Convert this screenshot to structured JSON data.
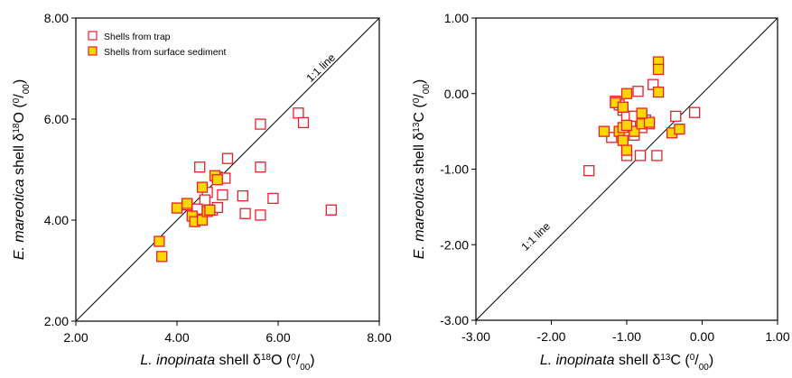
{
  "chart_data": [
    {
      "type": "scatter",
      "id": "oxygen",
      "xlabel": {
        "prefix": "L. inopinata",
        "main": " shell δ",
        "sup": "18",
        "tail": "O (",
        "unit_sup": "0",
        "unit_sep": "/",
        "unit_sub": "00",
        "close": ")"
      },
      "ylabel": {
        "prefix": "E. mareotica",
        "main": " shell δ",
        "sup": "18",
        "tail": "O (",
        "unit_sup": "0",
        "unit_sep": "/",
        "unit_sub": "00",
        "close": ")"
      },
      "xlim": [
        2,
        8
      ],
      "ylim": [
        2,
        8
      ],
      "xticks": [
        "2.00",
        "4.00",
        "6.00",
        "8.00"
      ],
      "yticks": [
        "2.00",
        "4.00",
        "6.00",
        "8.00"
      ],
      "one_to_one_label": "1:1 line",
      "legend": {
        "position": "top-left",
        "entries": [
          "Shells from trap",
          "Shells from surface sediment"
        ]
      },
      "series": [
        {
          "name": "Shells from trap",
          "color": "#e8202a",
          "fill": "#ffffff",
          "points": [
            [
              4.45,
              5.05
            ],
            [
              5.0,
              5.22
            ],
            [
              5.65,
              5.9
            ],
            [
              6.4,
              6.12
            ],
            [
              6.5,
              5.93
            ],
            [
              5.65,
              5.05
            ],
            [
              4.8,
              4.85
            ],
            [
              4.95,
              4.83
            ],
            [
              4.6,
              4.55
            ],
            [
              4.9,
              4.5
            ],
            [
              5.3,
              4.48
            ],
            [
              4.55,
              4.4
            ],
            [
              4.4,
              4.22
            ],
            [
              4.7,
              4.2
            ],
            [
              4.8,
              4.25
            ],
            [
              5.9,
              4.43
            ],
            [
              5.35,
              4.13
            ],
            [
              5.65,
              4.1
            ],
            [
              7.05,
              4.2
            ],
            [
              4.2,
              4.3
            ],
            [
              4.35,
              4.0
            ]
          ]
        },
        {
          "name": "Shells from surface sediment",
          "color": "#e8202a",
          "fill": "#ffd700",
          "points": [
            [
              3.65,
              3.58
            ],
            [
              3.7,
              3.28
            ],
            [
              4.0,
              4.24
            ],
            [
              4.2,
              4.33
            ],
            [
              4.3,
              4.08
            ],
            [
              4.35,
              3.97
            ],
            [
              4.5,
              4.0
            ],
            [
              4.5,
              4.65
            ],
            [
              4.6,
              4.17
            ],
            [
              4.65,
              4.2
            ],
            [
              4.75,
              4.88
            ],
            [
              4.8,
              4.8
            ]
          ]
        }
      ]
    },
    {
      "type": "scatter",
      "id": "carbon",
      "xlabel": {
        "prefix": "L. inopinata",
        "main": " shell δ",
        "sup": "13",
        "tail": "C (",
        "unit_sup": "0",
        "unit_sep": "/",
        "unit_sub": "00",
        "close": ")"
      },
      "ylabel": {
        "prefix": "E. mareotica",
        "main": " shell δ",
        "sup": "13",
        "tail": "C (",
        "unit_sup": "0",
        "unit_sep": "/",
        "unit_sub": "00",
        "close": ")"
      },
      "xlim": [
        -3,
        1
      ],
      "ylim": [
        -3,
        1
      ],
      "xticks": [
        "-3.00",
        "-2.00",
        "-1.00",
        "0.00",
        "1.00"
      ],
      "yticks": [
        "-3.00",
        "-2.00",
        "-1.00",
        "0.00",
        "1.00"
      ],
      "one_to_one_label": "1:1 line",
      "series": [
        {
          "name": "Shells from trap",
          "color": "#e8202a",
          "fill": "#ffffff",
          "points": [
            [
              -1.5,
              -1.02
            ],
            [
              -1.15,
              -0.1
            ],
            [
              -1.1,
              -0.15
            ],
            [
              -1.05,
              -0.22
            ],
            [
              -1.0,
              -0.3
            ],
            [
              -0.95,
              -0.42
            ],
            [
              -0.9,
              -0.55
            ],
            [
              -0.82,
              -0.82
            ],
            [
              -0.8,
              -0.45
            ],
            [
              -0.75,
              -0.35
            ],
            [
              -0.7,
              -0.4
            ],
            [
              -0.65,
              0.12
            ],
            [
              -0.6,
              -0.82
            ],
            [
              -0.35,
              -0.3
            ],
            [
              -0.1,
              -0.25
            ],
            [
              -0.85,
              0.03
            ],
            [
              -1.2,
              -0.58
            ],
            [
              -1.0,
              -0.82
            ],
            [
              -0.9,
              -0.3
            ]
          ]
        },
        {
          "name": "Shells from surface sediment",
          "color": "#e8202a",
          "fill": "#ffd700",
          "points": [
            [
              -1.3,
              -0.5
            ],
            [
              -1.15,
              -0.12
            ],
            [
              -1.1,
              -0.5
            ],
            [
              -1.05,
              -0.18
            ],
            [
              -1.05,
              -0.45
            ],
            [
              -1.05,
              -0.62
            ],
            [
              -1.0,
              -0.75
            ],
            [
              -1.0,
              0.0
            ],
            [
              -0.9,
              -0.5
            ],
            [
              -0.8,
              -0.28
            ],
            [
              -0.8,
              -0.4
            ],
            [
              -0.7,
              -0.38
            ],
            [
              -0.58,
              0.42
            ],
            [
              -0.58,
              0.32
            ],
            [
              -0.58,
              0.02
            ],
            [
              -0.4,
              -0.52
            ],
            [
              -0.3,
              -0.47
            ],
            [
              -1.0,
              -0.42
            ],
            [
              -0.8,
              -0.26
            ]
          ]
        }
      ]
    }
  ]
}
